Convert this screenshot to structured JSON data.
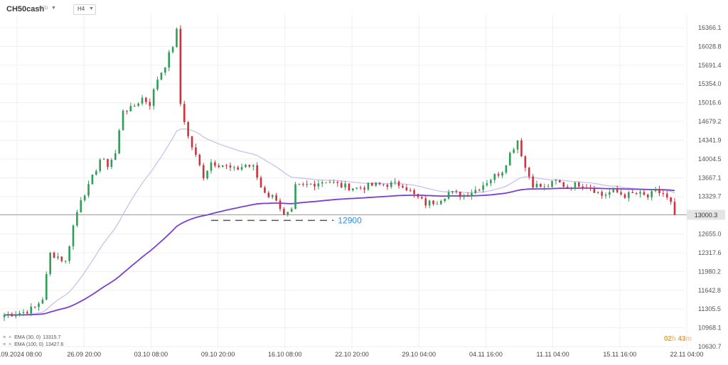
{
  "header": {
    "symbol": "CH50cash",
    "symbol_sub": "CFD",
    "timeframe": "H4"
  },
  "indicators": [
    {
      "label": "EMA (30, 0)",
      "value": "13315.7",
      "color": "#c9c1ec"
    },
    {
      "label": "EMA (100, 0)",
      "value": "13427.6",
      "color": "#7b3fd0"
    }
  ],
  "countdown": {
    "hours": "02",
    "h_unit": "h",
    "minutes": "43",
    "m_unit": "m"
  },
  "colors": {
    "up": "#2e9e57",
    "down": "#d0313d",
    "grid": "#efefef",
    "ema30": "#c9c1ec",
    "ema100": "#7b3fd0",
    "annotation": "#2d8fe0",
    "price_line": "#9a9a9a"
  },
  "chart_data": {
    "type": "candlestick",
    "y_ticks": [
      "16366.1",
      "16028.8",
      "15691.4",
      "15354.0",
      "15016.6",
      "14679.2",
      "14341.9",
      "14004.5",
      "13667.1",
      "13329.7",
      "12655.0",
      "12317.6",
      "11980.2",
      "11642.8",
      "11305.5",
      "10968.1",
      "10630.7"
    ],
    "ylim": [
      10630.7,
      16366.1
    ],
    "x_labels": [
      "20.09.2024 08:00",
      "26.09 20:00",
      "03.10 08:00",
      "09.10 20:00",
      "16.10 08:00",
      "22.10 20:00",
      "29.10 04:00",
      "04.11 16:00",
      "11.11 04:00",
      "15.11 16:00",
      "22.11 04:00"
    ],
    "current_price": "13000.3",
    "support_level": {
      "value": 12900,
      "label": "12900"
    },
    "path_anchors": [
      [
        0,
        11200
      ],
      [
        5,
        11250
      ],
      [
        8,
        11330
      ],
      [
        10,
        11500
      ],
      [
        12,
        12300
      ],
      [
        14,
        12250
      ],
      [
        16,
        12150
      ],
      [
        18,
        12800
      ],
      [
        20,
        13300
      ],
      [
        22,
        13500
      ],
      [
        25,
        14000
      ],
      [
        27,
        13900
      ],
      [
        29,
        14100
      ],
      [
        31,
        14900
      ],
      [
        33,
        14900
      ],
      [
        36,
        15100
      ],
      [
        38,
        15000
      ],
      [
        40,
        15450
      ],
      [
        42,
        15700
      ],
      [
        44,
        16050
      ],
      [
        45,
        16300
      ],
      [
        46,
        15000
      ],
      [
        48,
        14400
      ],
      [
        50,
        14050
      ],
      [
        52,
        13700
      ],
      [
        54,
        13950
      ],
      [
        57,
        13900
      ],
      [
        60,
        13800
      ],
      [
        63,
        13900
      ],
      [
        65,
        13850
      ],
      [
        67,
        13500
      ],
      [
        69,
        13350
      ],
      [
        71,
        13300
      ],
      [
        73,
        12970
      ],
      [
        75,
        13050
      ],
      [
        76,
        13500
      ],
      [
        80,
        13550
      ],
      [
        84,
        13620
      ],
      [
        88,
        13520
      ],
      [
        92,
        13480
      ],
      [
        96,
        13530
      ],
      [
        100,
        13550
      ],
      [
        104,
        13550
      ],
      [
        107,
        13350
      ],
      [
        110,
        13200
      ],
      [
        113,
        13250
      ],
      [
        116,
        13400
      ],
      [
        120,
        13350
      ],
      [
        123,
        13450
      ],
      [
        126,
        13600
      ],
      [
        128,
        13700
      ],
      [
        130,
        13800
      ],
      [
        132,
        14100
      ],
      [
        134,
        14350
      ],
      [
        136,
        13850
      ],
      [
        138,
        13550
      ],
      [
        141,
        13480
      ],
      [
        144,
        13600
      ],
      [
        147,
        13500
      ],
      [
        150,
        13560
      ],
      [
        153,
        13500
      ],
      [
        156,
        13350
      ],
      [
        159,
        13430
      ],
      [
        162,
        13350
      ],
      [
        165,
        13380
      ],
      [
        168,
        13320
      ],
      [
        170,
        13420
      ],
      [
        172,
        13380
      ],
      [
        174,
        13200
      ],
      [
        175,
        13000
      ]
    ],
    "n_candles": 176,
    "series": [
      {
        "name": "EMA (30, 0)",
        "period": 30
      },
      {
        "name": "EMA (100, 0)",
        "period": 100
      }
    ]
  }
}
